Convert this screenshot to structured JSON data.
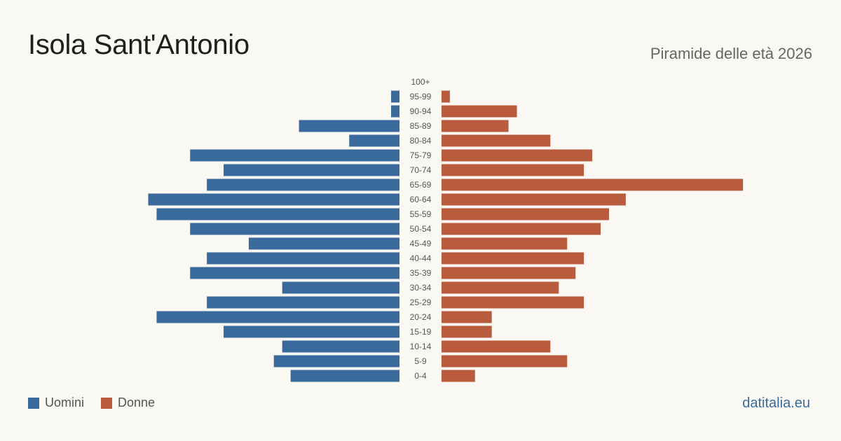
{
  "header": {
    "title": "Isola Sant'Antonio",
    "subtitle": "Piramide delle età 2026"
  },
  "legend": {
    "men_label": "Uomini",
    "women_label": "Donne"
  },
  "source": "datitalia.eu",
  "colors": {
    "men": "#3a6a9b",
    "women": "#b95c3e",
    "background": "#faf8f3",
    "tick_text": "#555555"
  },
  "chart_data": {
    "type": "bar",
    "orientation": "horizontal-pyramid",
    "categories": [
      "100+",
      "95-99",
      "90-94",
      "85-89",
      "80-84",
      "75-79",
      "70-74",
      "65-69",
      "60-64",
      "55-59",
      "50-54",
      "45-49",
      "40-44",
      "35-39",
      "30-34",
      "25-29",
      "20-24",
      "15-19",
      "10-14",
      "5-9",
      "0-4"
    ],
    "series": [
      {
        "name": "Uomini",
        "values": [
          0,
          1,
          1,
          12,
          6,
          25,
          21,
          23,
          30,
          29,
          25,
          18,
          23,
          25,
          14,
          23,
          29,
          21,
          14,
          15,
          13
        ]
      },
      {
        "name": "Donne",
        "values": [
          0,
          1,
          9,
          8,
          13,
          18,
          17,
          36,
          22,
          20,
          19,
          15,
          17,
          16,
          14,
          17,
          6,
          6,
          13,
          15,
          4
        ]
      }
    ],
    "title": "",
    "xlabel": "",
    "ylabel": "",
    "grid": false,
    "legend_position": "bottom-left"
  }
}
